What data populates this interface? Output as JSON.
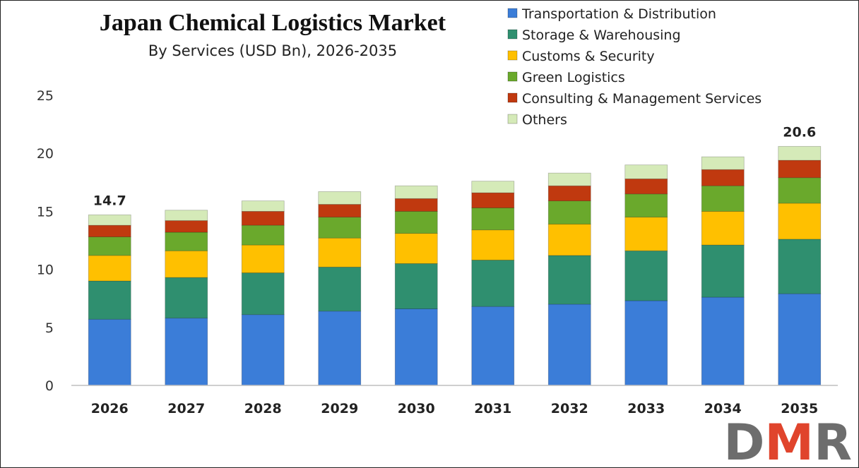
{
  "chart_data": {
    "type": "bar",
    "stacked": true,
    "title": "Japan Chemical Logistics Market",
    "subtitle": "By Services (USD Bn), 2026-2035",
    "xlabel": "",
    "ylabel": "",
    "ylim": [
      0,
      25
    ],
    "yticks": [
      0,
      5,
      10,
      15,
      20,
      25
    ],
    "grid": false,
    "legend_position": "top-right",
    "categories": [
      "2026",
      "2027",
      "2028",
      "2029",
      "2030",
      "2031",
      "2032",
      "2033",
      "2034",
      "2035"
    ],
    "series": [
      {
        "name": "Transportation & Distribution",
        "color": "#3b7dd8",
        "values": [
          5.7,
          5.8,
          6.1,
          6.4,
          6.6,
          6.8,
          7.0,
          7.3,
          7.6,
          7.9
        ]
      },
      {
        "name": "Storage & Warehousing",
        "color": "#2f8f6f",
        "values": [
          3.3,
          3.5,
          3.6,
          3.8,
          3.9,
          4.0,
          4.2,
          4.3,
          4.5,
          4.7
        ]
      },
      {
        "name": "Customs & Security",
        "color": "#ffc000",
        "values": [
          2.2,
          2.3,
          2.4,
          2.5,
          2.6,
          2.6,
          2.7,
          2.9,
          2.9,
          3.1
        ]
      },
      {
        "name": "Green Logistics",
        "color": "#6aa92c",
        "values": [
          1.6,
          1.6,
          1.7,
          1.8,
          1.9,
          1.9,
          2.0,
          2.0,
          2.2,
          2.2
        ]
      },
      {
        "name": "Consulting & Management Services",
        "color": "#c0390f",
        "values": [
          1.0,
          1.0,
          1.2,
          1.1,
          1.1,
          1.3,
          1.3,
          1.3,
          1.4,
          1.5
        ]
      },
      {
        "name": "Others",
        "color": "#d5eab8",
        "values": [
          0.9,
          0.9,
          0.9,
          1.1,
          1.1,
          1.0,
          1.1,
          1.2,
          1.1,
          1.2
        ]
      }
    ],
    "data_labels": [
      {
        "category": "2026",
        "text": "14.7"
      },
      {
        "category": "2035",
        "text": "20.6"
      }
    ]
  },
  "logo": {
    "text": "DMR",
    "colors": [
      "#6d6d6d",
      "#e0442c"
    ]
  }
}
